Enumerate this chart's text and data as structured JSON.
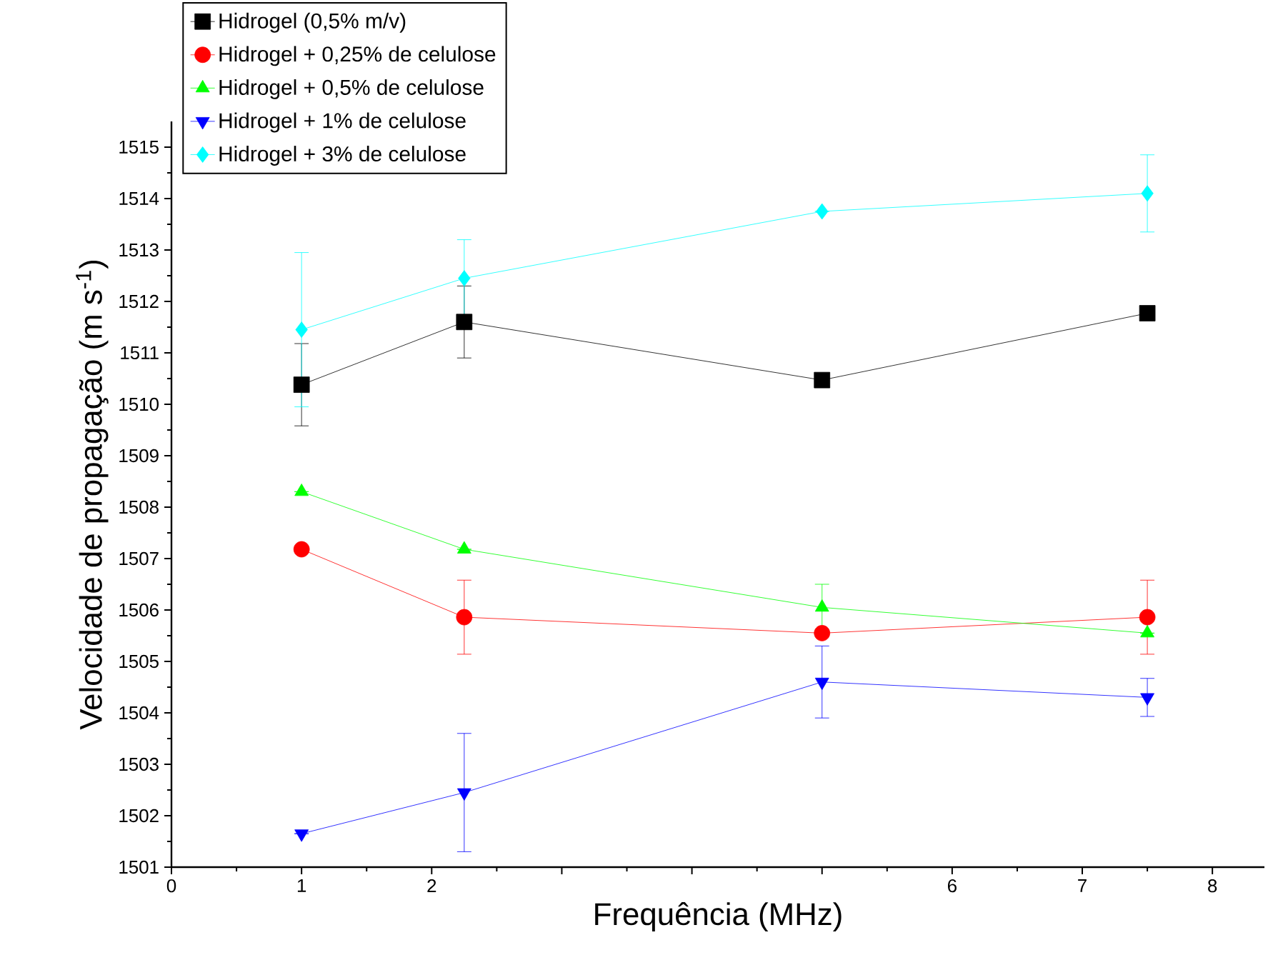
{
  "chart_data": {
    "type": "line",
    "xlabel": "Frequência (MHz)",
    "ylabel": "Velocidade de propagação (m s$^{-1}$)",
    "xlim": [
      0,
      8.4
    ],
    "ylim": [
      1501,
      1515.5
    ],
    "xticks": [
      0,
      1,
      2,
      {
        "value": 3,
        "label": null
      },
      {
        "value": 4,
        "label": null
      },
      {
        "value": 5,
        "label": null
      },
      6,
      7,
      8
    ],
    "yticks": [
      1501,
      1502,
      1503,
      1504,
      1505,
      1506,
      1507,
      1508,
      1509,
      1510,
      1511,
      1512,
      1513,
      1514,
      1515
    ],
    "grid": false,
    "legend": "top left",
    "line_style": "solid",
    "x": [
      1,
      2.25,
      5,
      7.5
    ],
    "series": [
      {
        "name": "Hidrogel (0,5% m/v)",
        "color": "#000000",
        "marker": "square",
        "values": [
          1510.38,
          1511.6,
          1510.47,
          1511.77
        ],
        "errors": [
          0.8,
          0.7,
          null,
          0.1
        ]
      },
      {
        "name": "Hidrogel + 0,25% de celulose",
        "color": "#ff0000",
        "marker": "circle",
        "values": [
          1507.18,
          1505.86,
          1505.55,
          1505.86
        ],
        "errors": [
          null,
          0.72,
          null,
          0.72
        ]
      },
      {
        "name": "Hidrogel + 0,5% de celulose",
        "color": "#00ff00",
        "marker": "triangle",
        "values": [
          1508.3,
          1507.18,
          1506.05,
          1505.55
        ],
        "errors": [
          null,
          null,
          0.45,
          null
        ]
      },
      {
        "name": "Hidrogel + 1% de celulose",
        "color": "#0000ff",
        "marker": "triangle-down",
        "values": [
          1501.65,
          1502.45,
          1504.6,
          1504.3
        ],
        "errors": [
          null,
          1.15,
          0.7,
          0.37
        ]
      },
      {
        "name": "Hidrogel + 3% de celulose",
        "color": "#00ffff",
        "marker": "diamond",
        "values": [
          1511.45,
          1512.45,
          1513.75,
          1514.1
        ],
        "errors": [
          1.5,
          0.75,
          null,
          0.75
        ]
      }
    ]
  }
}
